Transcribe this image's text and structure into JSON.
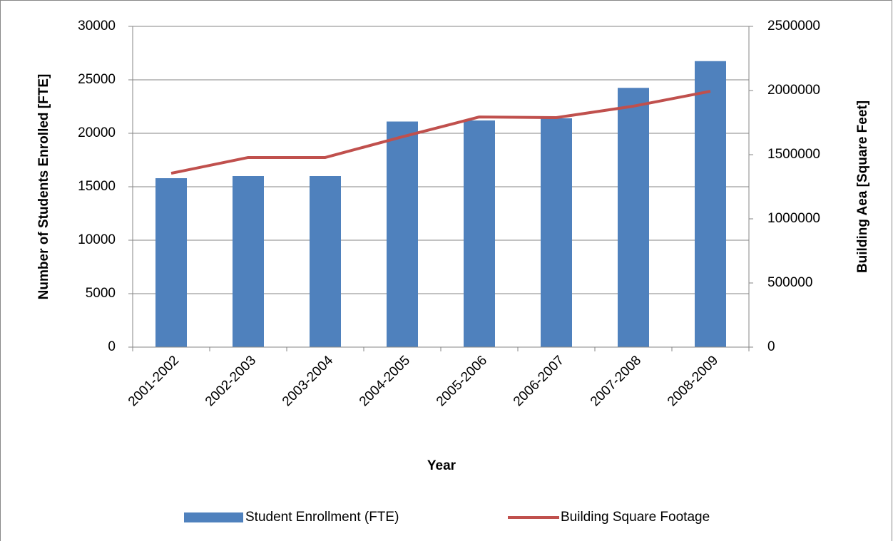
{
  "chart_data": {
    "type": "combo",
    "x_label": "Year",
    "y_label": "Number of Students Enrolled [FTE]",
    "y2_label": "Building Aea [Square Feet]",
    "categories": [
      "2001-2002",
      "2002-2003",
      "2003-2004",
      "2004-2005",
      "2005-2006",
      "2006-2007",
      "2007-2008",
      "2008-2009"
    ],
    "series": [
      {
        "name": "Student Enrollment (FTE)",
        "type": "bar",
        "color": "#4f81bd",
        "values": [
          15800,
          16000,
          16000,
          21100,
          21200,
          21400,
          24250,
          26750
        ]
      },
      {
        "name": "Building Square Footage",
        "type": "line",
        "axis": "y2",
        "color": "#c0504d",
        "values": [
          1355000,
          1478000,
          1478000,
          1639000,
          1794000,
          1789000,
          1878000,
          1994000
        ]
      }
    ],
    "ylim": [
      0,
      30000
    ],
    "yticks": [
      0,
      5000,
      10000,
      15000,
      20000,
      25000,
      30000
    ],
    "y2lim": [
      0,
      2500000
    ],
    "y2ticks": [
      0,
      500000,
      1000000,
      1500000,
      2000000,
      2500000
    ],
    "grid": true,
    "legend": "bottom"
  }
}
